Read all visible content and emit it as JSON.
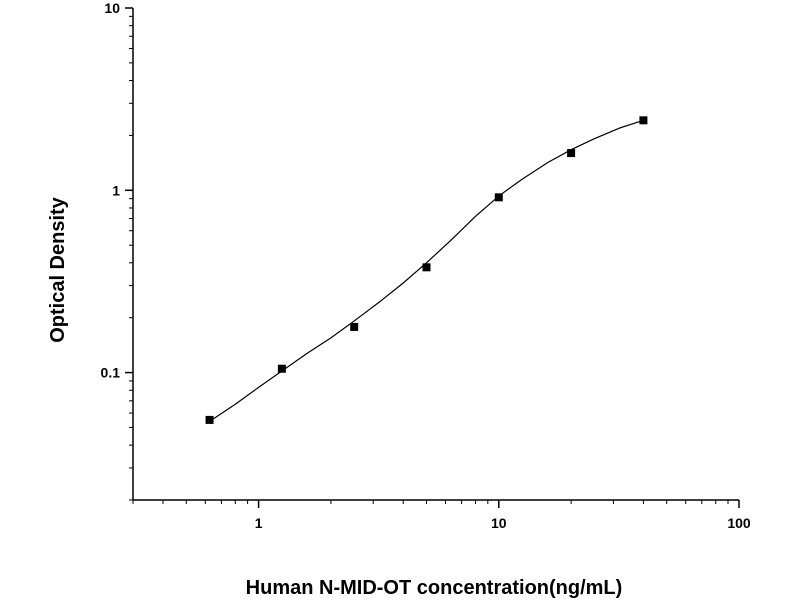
{
  "chart_data": {
    "type": "scatter",
    "title": "",
    "xlabel": "Human N-MID-OT concentration(ng/mL)",
    "ylabel": "Optical Density",
    "x_scale": "log",
    "y_scale": "log",
    "xlim": [
      0.3,
      100
    ],
    "ylim": [
      0.02,
      10
    ],
    "x_ticks": [
      {
        "value": 1,
        "label": "1"
      },
      {
        "value": 10,
        "label": "10"
      },
      {
        "value": 100,
        "label": "100"
      }
    ],
    "y_ticks": [
      {
        "value": 0.1,
        "label": "0.1"
      },
      {
        "value": 1,
        "label": "1"
      },
      {
        "value": 10,
        "label": "10"
      }
    ],
    "grid": false,
    "legend": "none",
    "series": [
      {
        "marker": "square",
        "color": "#000000",
        "x": [
          0.625,
          1.25,
          2.5,
          5,
          10,
          20,
          40
        ],
        "y": [
          0.055,
          0.105,
          0.178,
          0.378,
          0.915,
          1.6,
          2.42
        ]
      }
    ],
    "fit_curve": {
      "color": "#000000",
      "x": [
        0.625,
        0.8,
        1.0,
        1.25,
        1.6,
        2.0,
        2.5,
        3.2,
        4.0,
        5.0,
        6.3,
        8.0,
        10,
        12.5,
        16,
        20,
        25,
        32,
        40
      ],
      "y": [
        0.054,
        0.067,
        0.083,
        0.102,
        0.128,
        0.155,
        0.192,
        0.245,
        0.31,
        0.4,
        0.53,
        0.72,
        0.93,
        1.15,
        1.42,
        1.67,
        1.92,
        2.2,
        2.42
      ]
    }
  }
}
